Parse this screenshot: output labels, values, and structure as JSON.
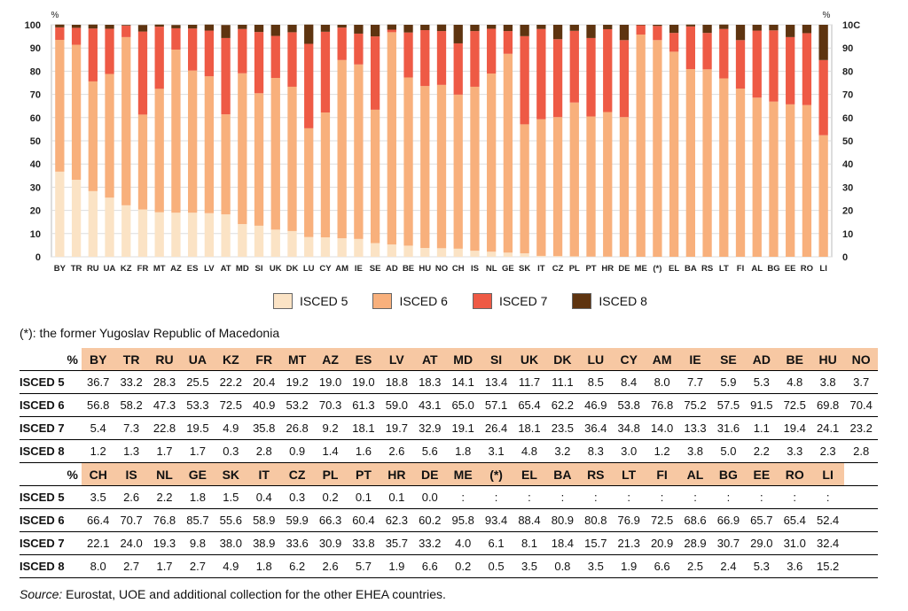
{
  "chart_data": {
    "type": "bar",
    "stacked": true,
    "y_unit": "%",
    "ylim": [
      0,
      100
    ],
    "yticks": [
      0,
      10,
      20,
      30,
      40,
      50,
      60,
      70,
      80,
      90,
      100
    ],
    "right_axis_top_label": "10C",
    "categories": [
      "BY",
      "TR",
      "RU",
      "UA",
      "KZ",
      "FR",
      "MT",
      "AZ",
      "ES",
      "LV",
      "AT",
      "MD",
      "SI",
      "UK",
      "DK",
      "LU",
      "CY",
      "AM",
      "IE",
      "SE",
      "AD",
      "BE",
      "HU",
      "NO",
      "CH",
      "IS",
      "NL",
      "GE",
      "SK",
      "IT",
      "CZ",
      "PL",
      "PT",
      "HR",
      "DE",
      "ME",
      "(*)",
      "EL",
      "BA",
      "RS",
      "LT",
      "FI",
      "AL",
      "BG",
      "EE",
      "RO",
      "LI"
    ],
    "series": [
      {
        "name": "ISCED 5",
        "color": "#fbe3c5",
        "values": [
          36.7,
          33.2,
          28.3,
          25.5,
          22.2,
          20.4,
          19.2,
          19.0,
          19.0,
          18.8,
          18.3,
          14.1,
          13.4,
          11.7,
          11.1,
          8.5,
          8.4,
          8.0,
          7.7,
          5.9,
          5.3,
          4.8,
          3.8,
          3.7,
          3.5,
          2.6,
          2.2,
          1.8,
          1.5,
          0.4,
          0.3,
          0.2,
          0.1,
          0.1,
          0.0,
          0,
          0,
          0,
          0,
          0,
          0,
          0,
          0,
          0,
          0,
          0,
          0
        ]
      },
      {
        "name": "ISCED 6",
        "color": "#f8b07c",
        "values": [
          56.8,
          58.2,
          47.3,
          53.3,
          72.5,
          40.9,
          53.2,
          70.3,
          61.3,
          59.0,
          43.1,
          65.0,
          57.1,
          65.4,
          62.2,
          46.9,
          53.8,
          76.8,
          75.2,
          57.5,
          91.5,
          72.5,
          69.8,
          70.4,
          66.4,
          70.7,
          76.8,
          85.7,
          55.6,
          58.9,
          59.9,
          66.3,
          60.4,
          62.3,
          60.2,
          95.8,
          93.4,
          88.4,
          80.9,
          80.8,
          76.9,
          72.5,
          68.6,
          66.9,
          65.7,
          65.4,
          52.4
        ]
      },
      {
        "name": "ISCED 7",
        "color": "#ee5a45",
        "values": [
          5.4,
          7.3,
          22.8,
          19.5,
          4.9,
          35.8,
          26.8,
          9.2,
          18.1,
          19.7,
          32.9,
          19.1,
          26.4,
          18.1,
          23.5,
          36.4,
          34.8,
          14.0,
          13.3,
          31.6,
          1.1,
          19.4,
          24.1,
          23.2,
          22.1,
          24.0,
          19.3,
          9.8,
          38.0,
          38.9,
          33.6,
          30.9,
          33.8,
          35.7,
          33.2,
          4.0,
          6.1,
          8.1,
          18.4,
          15.7,
          21.3,
          20.9,
          28.9,
          30.7,
          29.0,
          31.0,
          32.4
        ]
      },
      {
        "name": "ISCED 8",
        "color": "#5e3410",
        "values": [
          1.2,
          1.3,
          1.7,
          1.7,
          0.3,
          2.8,
          0.9,
          1.4,
          1.6,
          2.6,
          5.6,
          1.8,
          3.1,
          4.8,
          3.2,
          8.3,
          3.0,
          1.2,
          3.8,
          5.0,
          2.2,
          3.3,
          2.3,
          2.8,
          8.0,
          2.7,
          1.7,
          2.7,
          4.9,
          1.8,
          6.2,
          2.6,
          5.7,
          1.9,
          6.6,
          0.2,
          0.5,
          3.5,
          0.8,
          3.5,
          1.9,
          6.6,
          2.5,
          2.4,
          5.3,
          3.6,
          15.2
        ]
      }
    ]
  },
  "legend": [
    "ISCED 5",
    "ISCED 6",
    "ISCED 7",
    "ISCED 8"
  ],
  "note": "(*): the former Yugoslav Republic of Macedonia",
  "table": {
    "corner": "%",
    "part1": {
      "header": [
        "BY",
        "TR",
        "RU",
        "UA",
        "KZ",
        "FR",
        "MT",
        "AZ",
        "ES",
        "LV",
        "AT",
        "MD",
        "SI",
        "UK",
        "DK",
        "LU",
        "CY",
        "AM",
        "IE",
        "SE",
        "AD",
        "BE",
        "HU",
        "NO"
      ],
      "rows": [
        {
          "label": "ISCED 5",
          "cells": [
            "36.7",
            "33.2",
            "28.3",
            "25.5",
            "22.2",
            "20.4",
            "19.2",
            "19.0",
            "19.0",
            "18.8",
            "18.3",
            "14.1",
            "13.4",
            "11.7",
            "11.1",
            "8.5",
            "8.4",
            "8.0",
            "7.7",
            "5.9",
            "5.3",
            "4.8",
            "3.8",
            "3.7"
          ]
        },
        {
          "label": "ISCED 6",
          "cells": [
            "56.8",
            "58.2",
            "47.3",
            "53.3",
            "72.5",
            "40.9",
            "53.2",
            "70.3",
            "61.3",
            "59.0",
            "43.1",
            "65.0",
            "57.1",
            "65.4",
            "62.2",
            "46.9",
            "53.8",
            "76.8",
            "75.2",
            "57.5",
            "91.5",
            "72.5",
            "69.8",
            "70.4"
          ]
        },
        {
          "label": "ISCED 7",
          "cells": [
            "5.4",
            "7.3",
            "22.8",
            "19.5",
            "4.9",
            "35.8",
            "26.8",
            "9.2",
            "18.1",
            "19.7",
            "32.9",
            "19.1",
            "26.4",
            "18.1",
            "23.5",
            "36.4",
            "34.8",
            "14.0",
            "13.3",
            "31.6",
            "1.1",
            "19.4",
            "24.1",
            "23.2"
          ]
        },
        {
          "label": "ISCED 8",
          "cells": [
            "1.2",
            "1.3",
            "1.7",
            "1.7",
            "0.3",
            "2.8",
            "0.9",
            "1.4",
            "1.6",
            "2.6",
            "5.6",
            "1.8",
            "3.1",
            "4.8",
            "3.2",
            "8.3",
            "3.0",
            "1.2",
            "3.8",
            "5.0",
            "2.2",
            "3.3",
            "2.3",
            "2.8"
          ]
        }
      ]
    },
    "part2": {
      "header": [
        "CH",
        "IS",
        "NL",
        "GE",
        "SK",
        "IT",
        "CZ",
        "PL",
        "PT",
        "HR",
        "DE",
        "ME",
        "(*)",
        "EL",
        "BA",
        "RS",
        "LT",
        "FI",
        "AL",
        "BG",
        "EE",
        "RO",
        "LI",
        ""
      ],
      "rows": [
        {
          "label": "ISCED 5",
          "cells": [
            "3.5",
            "2.6",
            "2.2",
            "1.8",
            "1.5",
            "0.4",
            "0.3",
            "0.2",
            "0.1",
            "0.1",
            "0.0",
            ":",
            ":",
            ":",
            ":",
            ":",
            ":",
            ":",
            ":",
            ":",
            ":",
            ":",
            ":",
            ""
          ]
        },
        {
          "label": "ISCED 6",
          "cells": [
            "66.4",
            "70.7",
            "76.8",
            "85.7",
            "55.6",
            "58.9",
            "59.9",
            "66.3",
            "60.4",
            "62.3",
            "60.2",
            "95.8",
            "93.4",
            "88.4",
            "80.9",
            "80.8",
            "76.9",
            "72.5",
            "68.6",
            "66.9",
            "65.7",
            "65.4",
            "52.4",
            ""
          ]
        },
        {
          "label": "ISCED 7",
          "cells": [
            "22.1",
            "24.0",
            "19.3",
            "9.8",
            "38.0",
            "38.9",
            "33.6",
            "30.9",
            "33.8",
            "35.7",
            "33.2",
            "4.0",
            "6.1",
            "8.1",
            "18.4",
            "15.7",
            "21.3",
            "20.9",
            "28.9",
            "30.7",
            "29.0",
            "31.0",
            "32.4",
            ""
          ]
        },
        {
          "label": "ISCED 8",
          "cells": [
            "8.0",
            "2.7",
            "1.7",
            "2.7",
            "4.9",
            "1.8",
            "6.2",
            "2.6",
            "5.7",
            "1.9",
            "6.6",
            "0.2",
            "0.5",
            "3.5",
            "0.8",
            "3.5",
            "1.9",
            "6.6",
            "2.5",
            "2.4",
            "5.3",
            "3.6",
            "15.2",
            ""
          ]
        }
      ]
    }
  },
  "source": {
    "label": "Source:",
    "text": " Eurostat, UOE and additional collection for the other EHEA countries."
  }
}
